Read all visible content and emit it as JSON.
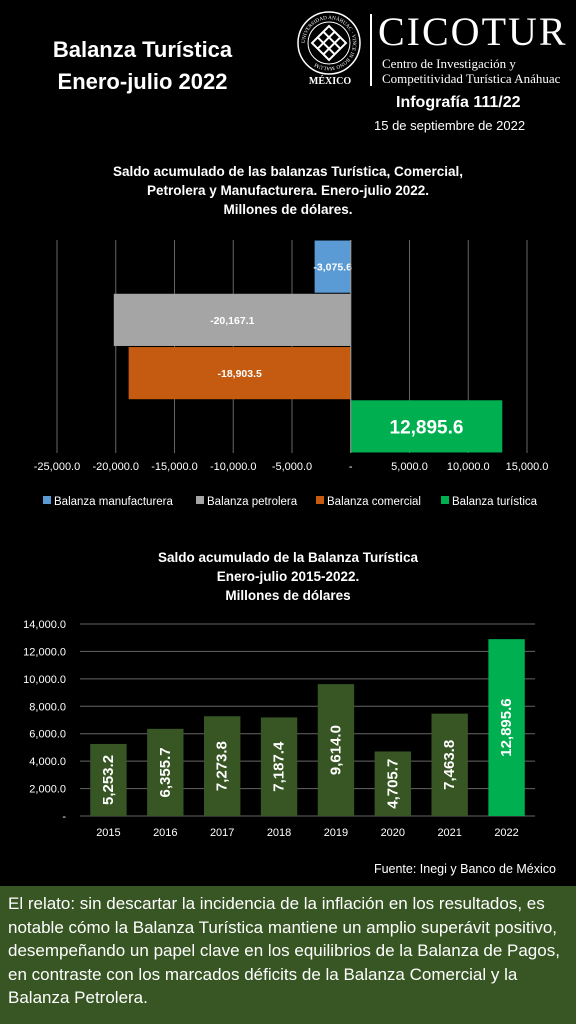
{
  "header": {
    "title_line1": "Balanza Turística",
    "title_line2": "Enero-julio 2022",
    "seal_text": "UNIVERSIDAD ANÁHUAC · VINCE IN BONO MALUM",
    "seal_caption": "MÉXICO",
    "brand": "CICOTUR",
    "brand_sub1": "Centro de Investigación y",
    "brand_sub2": "Competitividad Turística Anáhuac",
    "infografia": "Infografía 111/22",
    "fecha": "15 de septiembre de 2022"
  },
  "colors": {
    "background": "#000000",
    "manufacturera": "#5b9bd5",
    "petrolera": "#a5a5a5",
    "comercial": "#c55a11",
    "turistica": "#00b050",
    "story_bg": "#375623"
  },
  "chart_data": [
    {
      "type": "bar",
      "orientation": "horizontal",
      "title_lines": [
        "Saldo acumulado de las balanzas Turística, Comercial,",
        "Petrolera y Manufacturera. Enero-julio 2022.",
        "Millones de dólares."
      ],
      "categories": [
        "Balanza manufacturera",
        "Balanza petrolera",
        "Balanza comercial",
        "Balanza turística"
      ],
      "values": [
        -3075.6,
        -20167.1,
        -18903.5,
        12895.6
      ],
      "value_labels": [
        "-3,075.6",
        "-20,167.1",
        "-18,903.5",
        "12,895.6"
      ],
      "xlim": [
        -25000,
        15000
      ],
      "xticks": [
        -25000,
        -20000,
        -15000,
        -10000,
        -5000,
        0,
        5000,
        10000,
        15000
      ],
      "xtick_labels": [
        "-25,000.0",
        "-20,000.0",
        "-15,000.0",
        "-10,000.0",
        "-5,000.0",
        "-",
        "5,000.0",
        "10,000.0",
        "15,000.0"
      ],
      "grid": true,
      "legend": "bottom"
    },
    {
      "type": "bar",
      "title_lines": [
        "Saldo acumulado de la Balanza Turística",
        "Enero-julio 2015-2022.",
        "Millones de dólares"
      ],
      "categories": [
        "2015",
        "2016",
        "2017",
        "2018",
        "2019",
        "2020",
        "2021",
        "2022"
      ],
      "values": [
        5253.2,
        6355.7,
        7273.8,
        7187.4,
        9614.0,
        4705.7,
        7463.8,
        12895.6
      ],
      "value_labels": [
        "5,253.2",
        "6,355.7",
        "7,273.8",
        "7,187.4",
        "9,614.0",
        "4,705.7",
        "7,463.8",
        "12,895.6"
      ],
      "ylim": [
        0,
        14000
      ],
      "yticks": [
        0,
        2000,
        4000,
        6000,
        8000,
        10000,
        12000,
        14000
      ],
      "ytick_labels": [
        "-",
        "2,000.0",
        "4,000.0",
        "6,000.0",
        "8,000.0",
        "10,000.0",
        "12,000.0",
        "14,000.0"
      ],
      "grid": true,
      "highlight_last": true
    }
  ],
  "source": "Fuente: Inegi y Banco de México",
  "story": "El relato: sin descartar la incidencia de la inflación en los resultados, es notable cómo la Balanza Turística mantiene un amplio superávit positivo, desempeñando un papel clave en los equilibrios de la Balanza de Pagos, en contraste con los marcados déficits de la Balanza Comercial y la Balanza Petrolera."
}
